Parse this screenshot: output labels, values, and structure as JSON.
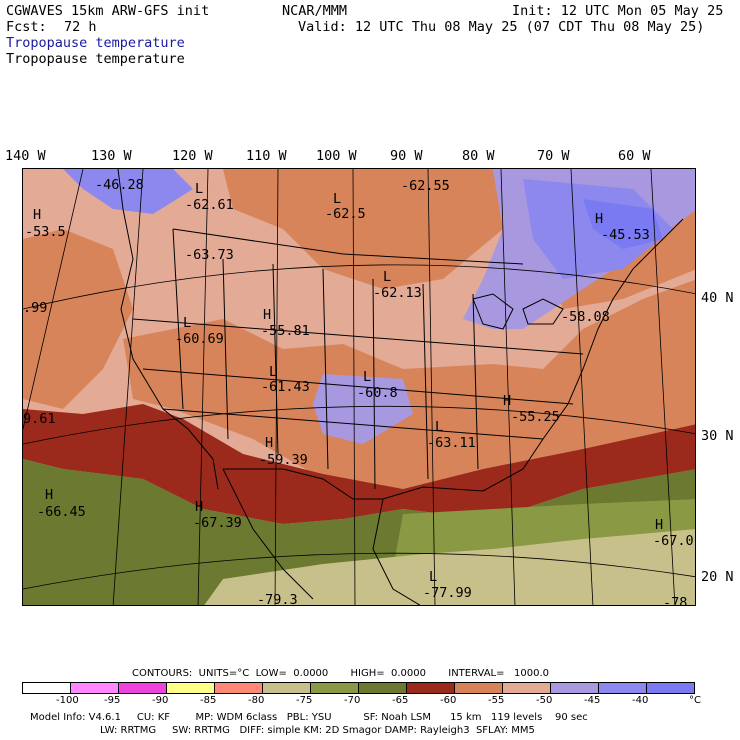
{
  "header": {
    "model": "CGWAVES 15km ARW-GFS init",
    "center": "NCAR/MMM",
    "init": "Init: 12 UTC Mon 05 May 25",
    "fcst_label": "Fcst:",
    "fcst_value": "72 h",
    "valid": "Valid: 12 UTC Thu 08 May 25 (07 CDT Thu 08 May 25)",
    "field_title_1": "Tropopause temperature",
    "field_title_2": "Tropopause temperature"
  },
  "longitude_labels": [
    "140 W",
    "130 W",
    "120 W",
    "110 W",
    "100 W",
    "90 W",
    "80 W",
    "70 W",
    "60 W"
  ],
  "latitude_labels": [
    "40 N",
    "30 N",
    "20 N"
  ],
  "map_labels": [
    {
      "symbol": "",
      "value": "-46.28"
    },
    {
      "symbol": "L",
      "value": "-62.61"
    },
    {
      "symbol": "H",
      "value": "-53.5"
    },
    {
      "symbol": "",
      "value": "-63.73"
    },
    {
      "symbol": "",
      "value": "-62.55"
    },
    {
      "symbol": "L",
      "value": "-62.5"
    },
    {
      "symbol": "L",
      "value": "-62.13"
    },
    {
      "symbol": "H",
      "value": "-45.53"
    },
    {
      "symbol": "",
      "value": ".99"
    },
    {
      "symbol": "L",
      "value": "-60.69"
    },
    {
      "symbol": "H",
      "value": "-55.81"
    },
    {
      "symbol": "",
      "value": "-58.08"
    },
    {
      "symbol": "L",
      "value": "-61.43"
    },
    {
      "symbol": "L",
      "value": "-60.8"
    },
    {
      "symbol": "",
      "value": "9.61"
    },
    {
      "symbol": "H",
      "value": "-55.25"
    },
    {
      "symbol": "L",
      "value": "-63.11"
    },
    {
      "symbol": "H",
      "value": "-59.39"
    },
    {
      "symbol": "H",
      "value": "-66.45"
    },
    {
      "symbol": "H",
      "value": "-67.39"
    },
    {
      "symbol": "H",
      "value": "-67.0"
    },
    {
      "symbol": "L",
      "value": "-77.99"
    },
    {
      "symbol": "",
      "value": "-79.3"
    },
    {
      "symbol": "",
      "value": "-78.0"
    }
  ],
  "legend": {
    "header": "CONTOURS:  UNITS=°C  LOW=  0.0000       HIGH=  0.0000       INTERVAL=   1000.0",
    "colors": [
      "#ffffff",
      "#ff88ff",
      "#ee44dd",
      "#ffff88",
      "#ff8877",
      "#c8c08a",
      "#8a9a44",
      "#6b7a30",
      "#9b2a1c",
      "#d8845a",
      "#e3aa96",
      "#a898e0",
      "#8c88ee",
      "#7a7af2"
    ],
    "ticks": [
      "-100",
      "-95",
      "-90",
      "-85",
      "-80",
      "-75",
      "-70",
      "-65",
      "-60",
      "-55",
      "-50",
      "-45",
      "-40"
    ],
    "unit": "°C"
  },
  "footer": {
    "line1": "Model Info: V4.6.1     CU: KF        MP: WDM 6class   PBL: YSU          SF: Noah LSM      15 km   119 levels    90 sec",
    "line2": "LW: RRTMG     SW: RRTMG   DIFF: simple KM: 2D Smagor DAMP: Rayleigh3  SFLAY: MM5"
  }
}
